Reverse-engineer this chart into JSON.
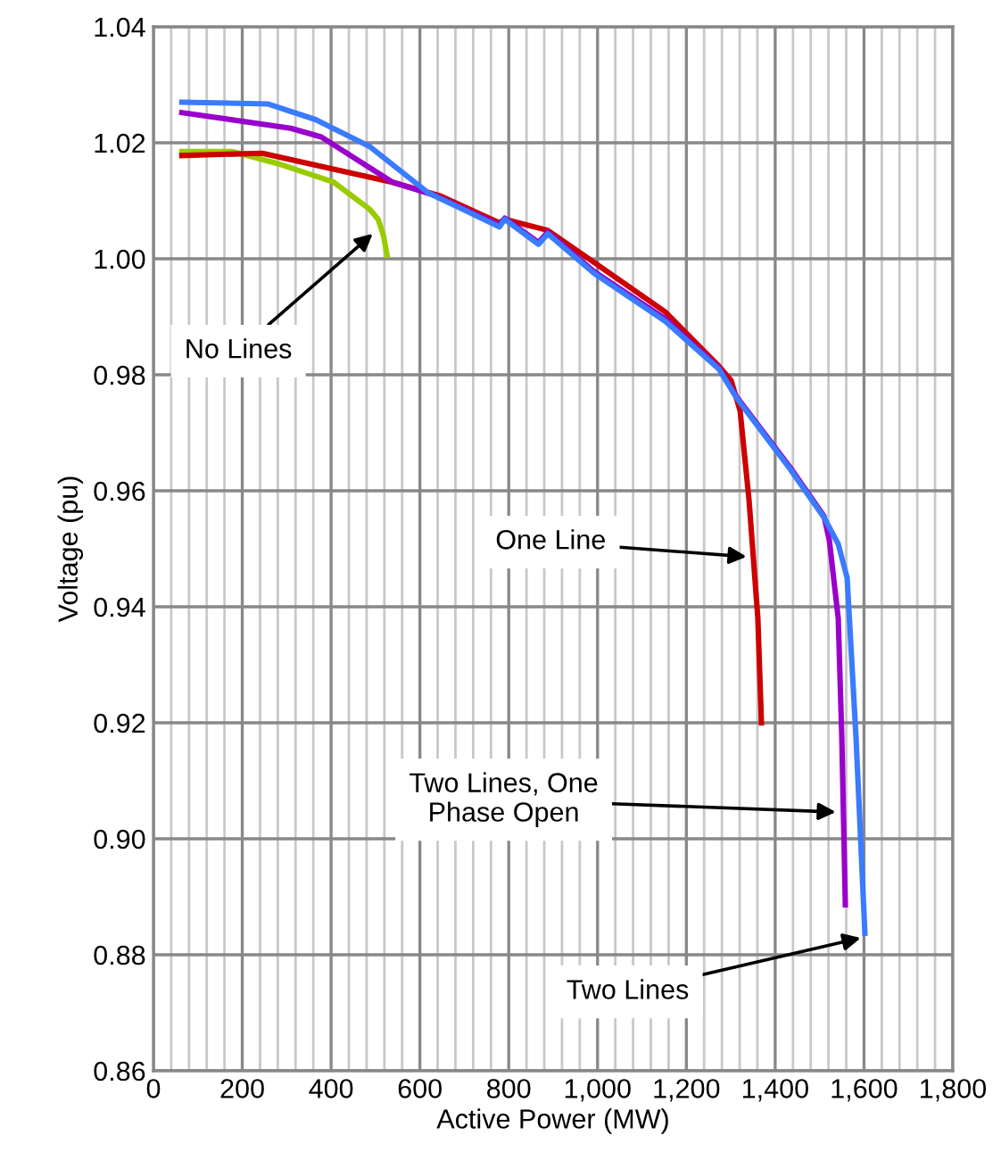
{
  "chart_data": {
    "type": "line",
    "xlabel": "Active Power (MW)",
    "ylabel": "Voltage (pu)",
    "xlim": [
      0,
      1800
    ],
    "ylim": [
      0.86,
      1.04
    ],
    "xticks": [
      {
        "value": 0,
        "label": "0"
      },
      {
        "value": 40,
        "label": null
      },
      {
        "value": 80,
        "label": null
      },
      {
        "value": 120,
        "label": null
      },
      {
        "value": 160,
        "label": null
      },
      {
        "value": 200,
        "label": "200"
      },
      {
        "value": 240,
        "label": null
      },
      {
        "value": 280,
        "label": null
      },
      {
        "value": 320,
        "label": null
      },
      {
        "value": 360,
        "label": null
      },
      {
        "value": 400,
        "label": "400"
      },
      {
        "value": 440,
        "label": null
      },
      {
        "value": 480,
        "label": null
      },
      {
        "value": 520,
        "label": null
      },
      {
        "value": 560,
        "label": null
      },
      {
        "value": 600,
        "label": "600"
      },
      {
        "value": 640,
        "label": null
      },
      {
        "value": 680,
        "label": null
      },
      {
        "value": 720,
        "label": null
      },
      {
        "value": 760,
        "label": null
      },
      {
        "value": 800,
        "label": "800"
      },
      {
        "value": 840,
        "label": null
      },
      {
        "value": 880,
        "label": null
      },
      {
        "value": 920,
        "label": null
      },
      {
        "value": 960,
        "label": null
      },
      {
        "value": 1000,
        "label": "1,000"
      },
      {
        "value": 1040,
        "label": null
      },
      {
        "value": 1080,
        "label": null
      },
      {
        "value": 1120,
        "label": null
      },
      {
        "value": 1160,
        "label": null
      },
      {
        "value": 1200,
        "label": "1,200"
      },
      {
        "value": 1240,
        "label": null
      },
      {
        "value": 1280,
        "label": null
      },
      {
        "value": 1320,
        "label": null
      },
      {
        "value": 1360,
        "label": null
      },
      {
        "value": 1400,
        "label": "1,400"
      },
      {
        "value": 1440,
        "label": null
      },
      {
        "value": 1480,
        "label": null
      },
      {
        "value": 1520,
        "label": null
      },
      {
        "value": 1560,
        "label": null
      },
      {
        "value": 1600,
        "label": "1,600"
      },
      {
        "value": 1640,
        "label": null
      },
      {
        "value": 1680,
        "label": null
      },
      {
        "value": 1720,
        "label": null
      },
      {
        "value": 1760,
        "label": null
      },
      {
        "value": 1800,
        "label": "1,800"
      }
    ],
    "yticks": [
      {
        "value": 0.86,
        "label": "0.86"
      },
      {
        "value": 0.88,
        "label": "0.88"
      },
      {
        "value": 0.9,
        "label": "0.90"
      },
      {
        "value": 0.92,
        "label": "0.92"
      },
      {
        "value": 0.94,
        "label": "0.94"
      },
      {
        "value": 0.96,
        "label": "0.96"
      },
      {
        "value": 0.98,
        "label": "0.98"
      },
      {
        "value": 1.0,
        "label": "1.00"
      },
      {
        "value": 1.02,
        "label": "1.02"
      },
      {
        "value": 1.04,
        "label": "1.04"
      }
    ],
    "grid": true,
    "marker": "none",
    "line_style": "solid",
    "series": [
      {
        "color": "#99cc00",
        "x": [
          64,
          177,
          285,
          406,
          458,
          486,
          506,
          518,
          526
        ],
        "values": [
          1.0185,
          1.0185,
          1.0163,
          1.0132,
          1.0102,
          1.0086,
          1.0068,
          1.004,
          1.0006
        ]
      },
      {
        "color": "#cc0000",
        "x": [
          64,
          245,
          538,
          647,
          779,
          791,
          888,
          992,
          1153,
          1273,
          1301,
          1321,
          1341,
          1361,
          1369
        ],
        "values": [
          1.0178,
          1.0182,
          1.0132,
          1.0108,
          1.0062,
          1.0068,
          1.0049,
          0.9994,
          0.9908,
          0.9815,
          0.979,
          0.9738,
          0.9585,
          0.938,
          0.92
        ]
      },
      {
        "color": "#9900cc",
        "x": [
          64,
          309,
          378,
          538,
          631,
          779,
          791,
          867,
          888,
          992,
          1153,
          1273,
          1313,
          1434,
          1510,
          1522,
          1542,
          1550,
          1558
        ],
        "values": [
          1.0252,
          1.0225,
          1.021,
          1.0132,
          1.011,
          1.0058,
          1.007,
          1.0028,
          1.0046,
          0.9978,
          0.9896,
          0.9812,
          0.9762,
          0.964,
          0.9556,
          0.9514,
          0.938,
          0.9175,
          0.8886
        ]
      },
      {
        "color": "#3a7bff",
        "x": [
          64,
          257,
          365,
          486,
          618,
          779,
          791,
          867,
          888,
          992,
          1153,
          1273,
          1313,
          1434,
          1510,
          1542,
          1562,
          1582,
          1602
        ],
        "values": [
          1.027,
          1.0267,
          1.024,
          1.0194,
          1.0114,
          1.0055,
          1.0068,
          1.0025,
          1.0043,
          0.9975,
          0.9892,
          0.981,
          0.976,
          0.9637,
          0.9554,
          0.9508,
          0.945,
          0.9175,
          0.8837
        ]
      }
    ],
    "annotations": [
      {
        "text": "No Lines",
        "x": 498,
        "y": 1.0046
      },
      {
        "text": "One Line",
        "x": 1341,
        "y": 0.9486
      },
      {
        "text": "Two Lines, One\nPhase Open",
        "x": 1542,
        "y": 0.9046
      },
      {
        "text": "Two Lines",
        "x": 1598,
        "y": 0.883
      }
    ]
  }
}
